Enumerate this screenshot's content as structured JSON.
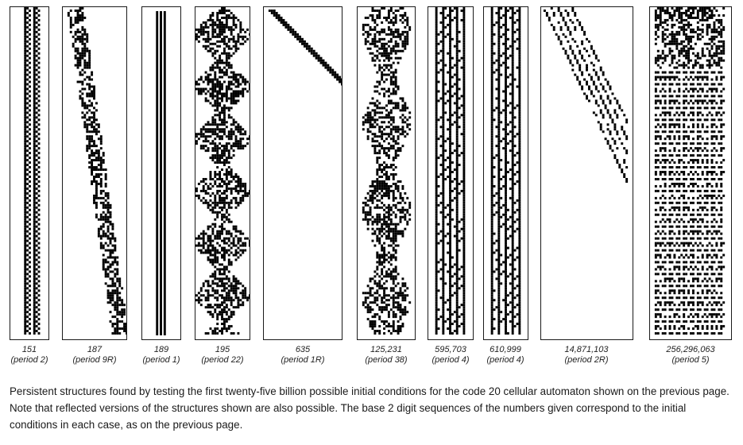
{
  "structures": [
    {
      "number": "151",
      "period": "(period 2)",
      "pattern": "vertical-band"
    },
    {
      "number": "187",
      "period": "(period 9R)",
      "pattern": "diagonal-chain"
    },
    {
      "number": "189",
      "period": "(period 1)",
      "pattern": "solid-stripes"
    },
    {
      "number": "195",
      "period": "(period 22)",
      "pattern": "triangles"
    },
    {
      "number": "635",
      "period": "(period 1R)",
      "pattern": "diagonal-line"
    },
    {
      "number": "125,231",
      "period": "(period 38)",
      "pattern": "complex-band"
    },
    {
      "number": "595,703",
      "period": "(period 4)",
      "pattern": "textured-band"
    },
    {
      "number": "610,999",
      "period": "(period 4)",
      "pattern": "textured-band"
    },
    {
      "number": "14,871,103",
      "period": "(period 2R)",
      "pattern": "diagonal-bands"
    },
    {
      "number": "256,296,063",
      "period": "(period 5)",
      "pattern": "wide-band"
    }
  ],
  "caption": "Persistent structures found by testing the first twenty-five billion possible initial conditions for the code 20 cellular automaton shown on the previous page. Note that reflected versions of the structures shown are also possible. The base 2 digit sequences of the numbers given correspond to the initial conditions in each case, as on the previous page."
}
